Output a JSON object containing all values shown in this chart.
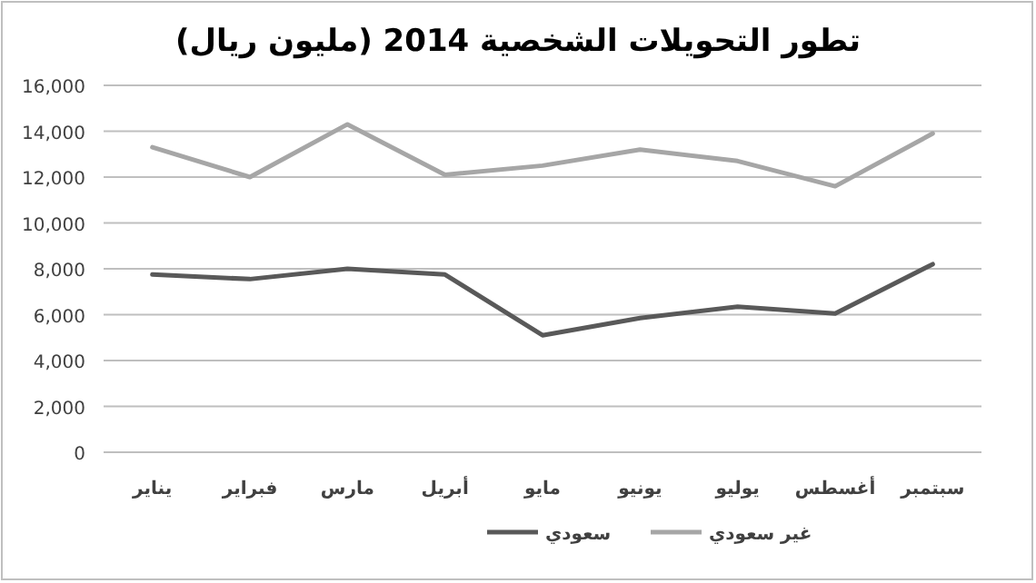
{
  "chart_data": {
    "type": "line",
    "title": "تطور التحويلات الشخصية 2014   (مليون ريال)",
    "categories": [
      "يناير",
      "فبراير",
      "مارس",
      "أبريل",
      "مايو",
      "يونيو",
      "يوليو",
      "أغسطس",
      "سبتمبر"
    ],
    "series": [
      {
        "name": "سعودي",
        "color": "#595959",
        "values": [
          7750,
          7550,
          8000,
          7750,
          5100,
          5850,
          6350,
          6050,
          8200
        ]
      },
      {
        "name": "غير سعودي",
        "color": "#a6a6a6",
        "values": [
          13300,
          12000,
          14300,
          12100,
          12500,
          13200,
          12700,
          11600,
          13900
        ]
      }
    ],
    "ylim": [
      0,
      16000
    ],
    "yticks": [
      {
        "value": 0,
        "label": "0"
      },
      {
        "value": 2000,
        "label": "2,000"
      },
      {
        "value": 4000,
        "label": "4,000"
      },
      {
        "value": 6000,
        "label": "6,000"
      },
      {
        "value": 8000,
        "label": "8,000"
      },
      {
        "value": 10000,
        "label": "10,000"
      },
      {
        "value": 12000,
        "label": "12,000"
      },
      {
        "value": 14000,
        "label": "14,000"
      },
      {
        "value": 16000,
        "label": "16,000"
      }
    ],
    "grid": "y",
    "legend": "bottom"
  }
}
